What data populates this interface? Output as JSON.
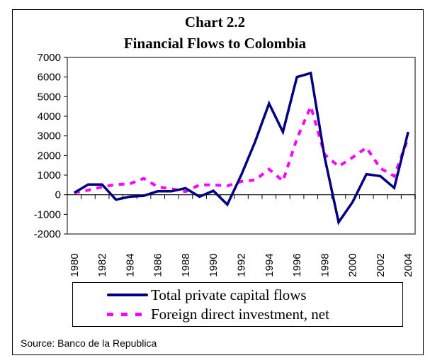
{
  "chart_data": {
    "type": "line",
    "title": "Chart 2.2",
    "subtitle": "Financial Flows to Colombia",
    "xlabel": "",
    "ylabel": "",
    "x": [
      1980,
      1981,
      1982,
      1983,
      1984,
      1985,
      1986,
      1987,
      1988,
      1989,
      1990,
      1991,
      1992,
      1993,
      1994,
      1995,
      1996,
      1997,
      1998,
      1999,
      2000,
      2001,
      2002,
      2003,
      2004
    ],
    "x_tick_labels": [
      "1980",
      "1982",
      "1984",
      "1986",
      "1988",
      "1990",
      "1992",
      "1994",
      "1996",
      "1998",
      "2000",
      "2002",
      "2004"
    ],
    "y_tick_labels": [
      "7000",
      "6000",
      "5000",
      "4000",
      "3000",
      "2000",
      "1000",
      "0",
      "-1000",
      "-2000"
    ],
    "ylim": [
      -2000,
      7000
    ],
    "grid": false,
    "legend_position": "bottom",
    "series": [
      {
        "name": "Total private capital flows",
        "color": "#000080",
        "style": "solid",
        "values": [
          100,
          520,
          520,
          -250,
          -100,
          -50,
          180,
          180,
          330,
          -100,
          200,
          -500,
          1000,
          2700,
          4650,
          3200,
          6000,
          6200,
          1900,
          -1400,
          -380,
          1050,
          950,
          350,
          3200
        ]
      },
      {
        "name": "Foreign direct investment, net",
        "color": "#ff00ff",
        "style": "dashed",
        "values": [
          100,
          230,
          400,
          520,
          560,
          830,
          400,
          300,
          160,
          500,
          500,
          450,
          680,
          750,
          1300,
          700,
          2850,
          4500,
          2050,
          1450,
          1900,
          2400,
          1350,
          950,
          2900
        ]
      }
    ]
  },
  "source": "Source: Banco de la Republica"
}
